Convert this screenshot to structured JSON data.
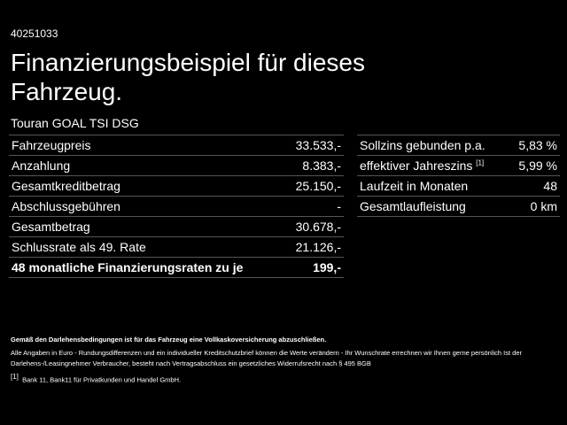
{
  "header": {
    "id": "40251033",
    "title": "Finanzierungsbeispiel für dieses Fahrzeug.",
    "vehicle": "Touran GOAL TSI DSG"
  },
  "left_table": {
    "rows": [
      [
        "Fahrzeugpreis",
        "33.533,-"
      ],
      [
        "Anzahlung",
        "8.383,-"
      ],
      [
        "Gesamtkreditbetrag",
        "25.150,-"
      ],
      [
        "Abschlussgebühren",
        "-"
      ],
      [
        "Gesamtbetrag",
        "30.678,-"
      ],
      [
        "Schlussrate als 49. Rate",
        "21.126,-"
      ],
      [
        "48 monatliche Finanzierungsraten zu je",
        "199,-"
      ]
    ]
  },
  "right_table": {
    "rows": [
      {
        "label": "Sollzins gebunden p.a.",
        "value": "5,83 %"
      },
      {
        "label": "effektiver Jahreszins",
        "note": "[1]",
        "value": "5,99 %"
      },
      {
        "label": "Laufzeit in Monaten",
        "value": "48"
      },
      {
        "label": "Gesamtlaufleistung",
        "value": "0 km"
      }
    ]
  },
  "footer": {
    "insurance": "Gemäß den Darlehensbedingungen ist für das Fahrzeug eine Vollkaskoversicherung abzuschließen.",
    "disclaimer": "Alle Angaben in Euro - Rundungsdifferenzen und ein individueller Kreditschutzbrief können die Werte verändern - Ihr Wunschrate errechnen wir Ihnen gerne persönlich Ist der Darlehens-/Leasingnehmer Verbraucher, besteht nach Vertragsabschluss ein gesetzliches Widerrufsrecht nach § 495 BGB",
    "note_marker": "[1]",
    "note_text": "Bank 11, Bank11 für Privatkunden und Handel GmbH."
  }
}
